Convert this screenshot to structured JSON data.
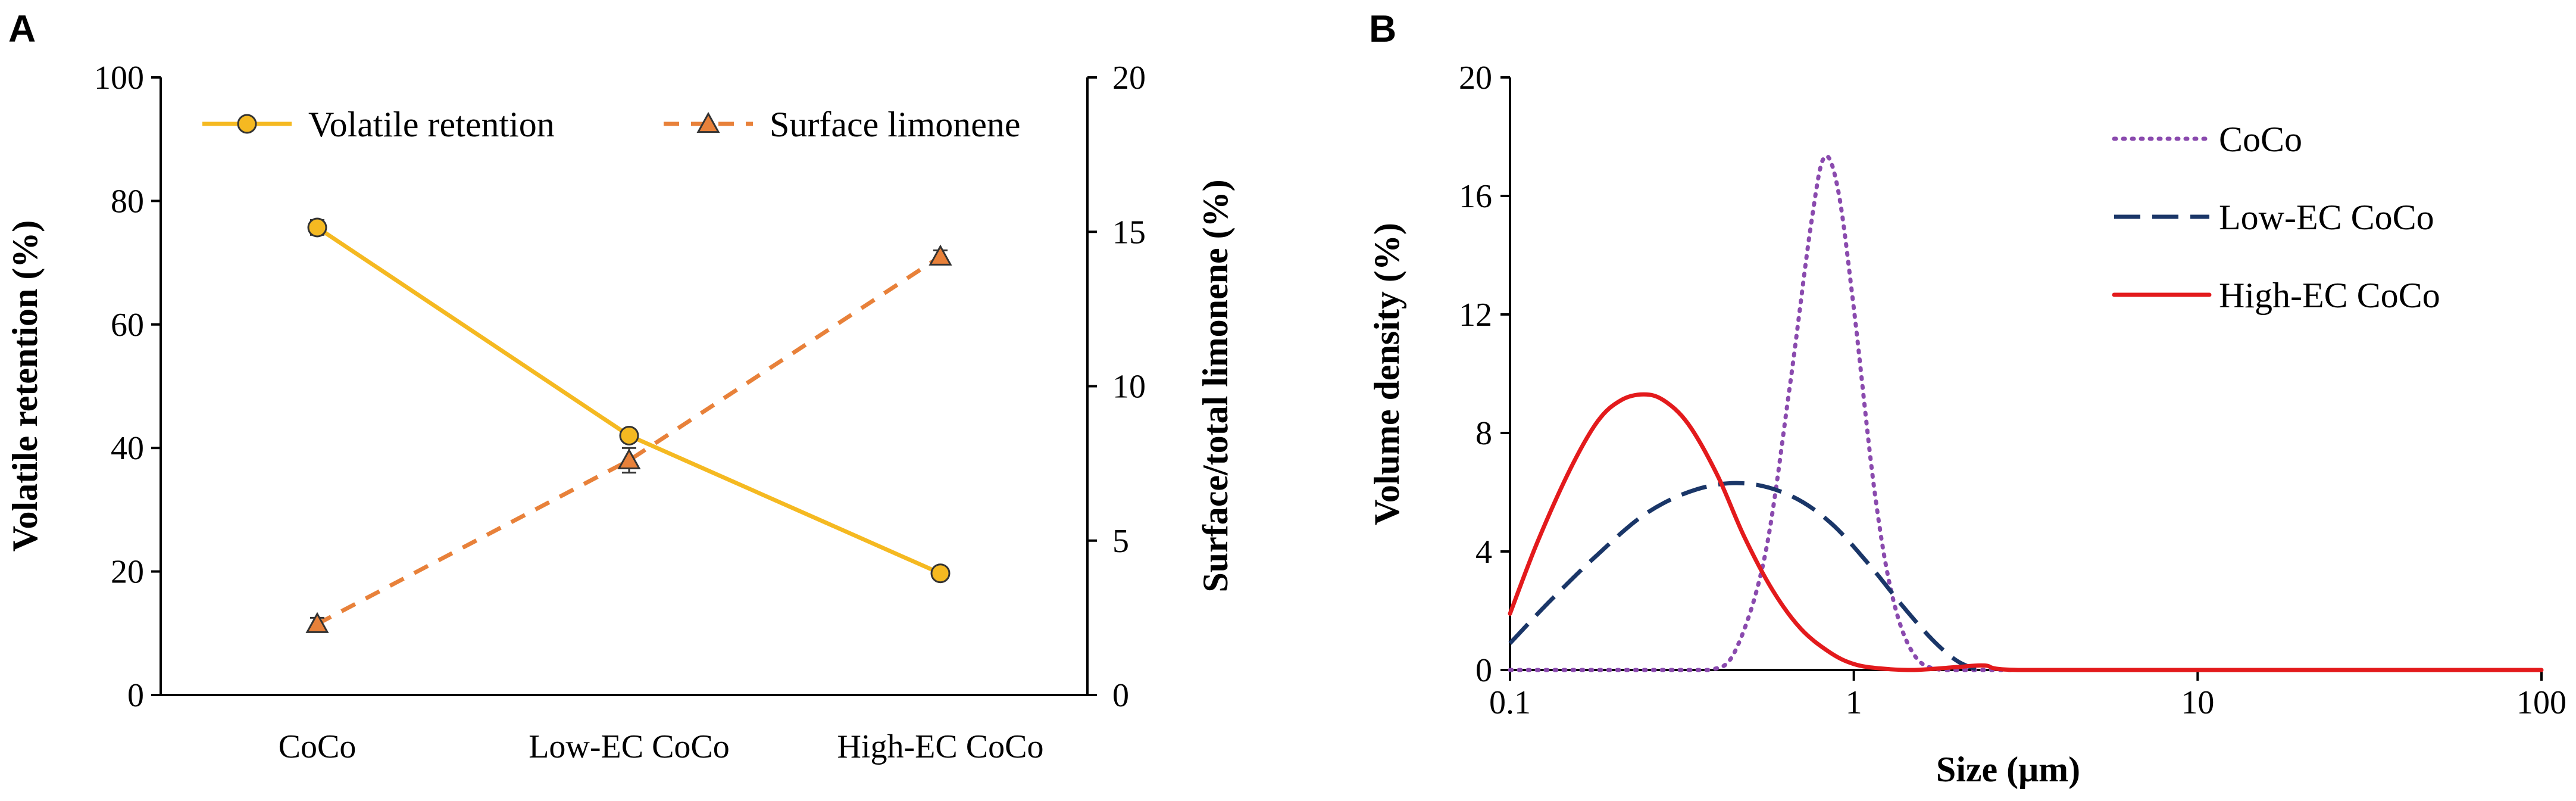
{
  "chart_data": [
    {
      "panel_label": "A",
      "type": "line",
      "categories": [
        "CoCo",
        "Low-EC CoCo",
        "High-EC CoCo"
      ],
      "ylabel": "Volatile retention (%)",
      "ylim": [
        0,
        100
      ],
      "yticks": [
        "0",
        "20",
        "40",
        "60",
        "80",
        "100"
      ],
      "y2label": "Surface/total limonene (%)",
      "y2lim": [
        0,
        20
      ],
      "y2ticks": [
        "0",
        "5",
        "10",
        "15",
        "20"
      ],
      "legend_position": "top",
      "series": [
        {
          "name": "Volatile retention",
          "axis": "left",
          "style": "solid",
          "marker": "circle",
          "color": "#F5B921",
          "marker_color": "#F5B921",
          "values": [
            75.7,
            42.0,
            19.7
          ],
          "errors": [
            1.2,
            0.8,
            0.6
          ]
        },
        {
          "name": "Surface limonene",
          "axis": "right",
          "style": "dashed",
          "marker": "triangle",
          "color": "#E8813A",
          "marker_color": "#E8813A",
          "values": [
            2.3,
            7.6,
            14.2
          ],
          "errors": [
            0.2,
            0.4,
            0.2
          ]
        }
      ]
    },
    {
      "panel_label": "B",
      "type": "line",
      "xscale": "log",
      "xlabel": "Size (μm)",
      "ylabel": "Volume density (%)",
      "xlim": [
        0.1,
        100
      ],
      "xticks": [
        "0.1",
        "1",
        "10",
        "100"
      ],
      "ylim": [
        0,
        20
      ],
      "yticks": [
        "0",
        "4",
        "8",
        "12",
        "16",
        "20"
      ],
      "legend_position": "top-right",
      "series": [
        {
          "name": "CoCo",
          "style": "dotted",
          "color": "#8A4AAE",
          "x": [
            0.1,
            0.3,
            0.38,
            0.45,
            0.55,
            0.65,
            0.75,
            0.82,
            0.9,
            1.0,
            1.15,
            1.3,
            1.5,
            1.8,
            2.5,
            10,
            100
          ],
          "y": [
            0,
            0,
            0,
            0.6,
            3.8,
            9.5,
            15.0,
            17.3,
            16.2,
            12.2,
            6.0,
            2.4,
            0.5,
            0,
            0,
            0,
            0
          ]
        },
        {
          "name": "Low-EC CoCo",
          "style": "dashed",
          "color": "#1A3668",
          "x": [
            0.1,
            0.13,
            0.18,
            0.25,
            0.35,
            0.48,
            0.65,
            0.85,
            1.1,
            1.4,
            1.7,
            2.0,
            2.3
          ],
          "y": [
            0.9,
            2.3,
            3.9,
            5.3,
            6.1,
            6.3,
            5.9,
            5.0,
            3.6,
            2.1,
            1.0,
            0.3,
            0
          ]
        },
        {
          "name": "High-EC CoCo",
          "style": "solid",
          "color": "#E31A1C",
          "x": [
            0.1,
            0.12,
            0.15,
            0.18,
            0.21,
            0.245,
            0.28,
            0.33,
            0.4,
            0.48,
            0.58,
            0.7,
            0.85,
            1.0,
            1.2,
            1.5,
            2.0,
            2.4,
            3.0,
            10,
            100
          ],
          "y": [
            1.9,
            4.3,
            6.8,
            8.4,
            9.1,
            9.3,
            9.1,
            8.3,
            6.6,
            4.5,
            2.7,
            1.4,
            0.6,
            0.2,
            0.05,
            0,
            0.1,
            0.15,
            0,
            0,
            0
          ]
        }
      ]
    }
  ]
}
